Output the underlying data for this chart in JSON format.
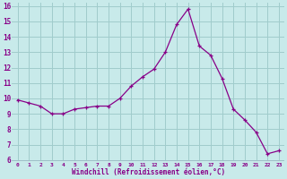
{
  "x": [
    0,
    1,
    2,
    3,
    4,
    5,
    6,
    7,
    8,
    9,
    10,
    11,
    12,
    13,
    14,
    15,
    16,
    17,
    18,
    19,
    20,
    21,
    22,
    23
  ],
  "y": [
    9.9,
    9.7,
    9.5,
    9.0,
    9.0,
    9.3,
    9.4,
    9.5,
    9.5,
    10.0,
    10.8,
    11.4,
    11.9,
    13.0,
    14.8,
    15.8,
    13.4,
    12.8,
    11.3,
    9.3,
    8.6,
    7.8,
    6.4,
    6.6
  ],
  "line_color": "#880088",
  "marker": "+",
  "marker_size": 3,
  "bg_color": "#c8eaea",
  "grid_color": "#a0cccc",
  "xlabel": "Windchill (Refroidissement éolien,°C)",
  "xlabel_color": "#880088",
  "tick_color": "#880088",
  "ylim": [
    6,
    16
  ],
  "xlim": [
    -0.5,
    23.5
  ],
  "yticks": [
    6,
    7,
    8,
    9,
    10,
    11,
    12,
    13,
    14,
    15,
    16
  ],
  "xticks": [
    0,
    1,
    2,
    3,
    4,
    5,
    6,
    7,
    8,
    9,
    10,
    11,
    12,
    13,
    14,
    15,
    16,
    17,
    18,
    19,
    20,
    21,
    22,
    23
  ],
  "xtick_labels": [
    "0",
    "1",
    "2",
    "3",
    "4",
    "5",
    "6",
    "7",
    "8",
    "9",
    "10",
    "11",
    "12",
    "13",
    "14",
    "15",
    "16",
    "17",
    "18",
    "19",
    "20",
    "21",
    "22",
    "23"
  ],
  "ytick_labels": [
    "6",
    "7",
    "8",
    "9",
    "10",
    "11",
    "12",
    "13",
    "14",
    "15",
    "16"
  ]
}
